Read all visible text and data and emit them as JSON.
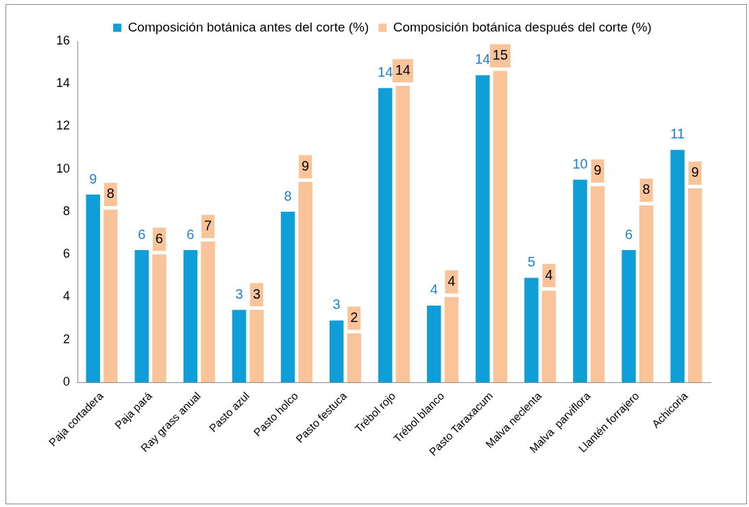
{
  "chart_data": {
    "type": "bar",
    "categories": [
      "Paja cortadera",
      "Paja pará",
      "Ray grass anual",
      "Pasto azul",
      "Pasto holco",
      "Pasto festuca",
      "Trébol rojo",
      "Trébol blanco",
      "Pasto Taraxacum",
      "Malva neclenta",
      "Malva  parviflora",
      "Llantén forrajero",
      "Achicoria"
    ],
    "series": [
      {
        "name": "Composición botánica antes del corte (%)",
        "color": "#0f9ed8",
        "values": [
          8.8,
          6.2,
          6.2,
          3.4,
          8.0,
          2.9,
          13.8,
          3.6,
          14.4,
          4.9,
          9.5,
          6.2,
          10.9
        ],
        "value_labels": [
          "9",
          "6",
          "6",
          "3",
          "8",
          "3",
          "14",
          "4",
          "14",
          "5",
          "10",
          "6",
          "11"
        ]
      },
      {
        "name": "Composición botánica después del corte (%)",
        "color": "#f9c49a",
        "values": [
          8.1,
          6.0,
          6.6,
          3.4,
          9.4,
          2.3,
          13.9,
          4.0,
          14.6,
          4.3,
          9.2,
          8.3,
          9.1
        ],
        "value_labels": [
          "8",
          "6",
          "7",
          "3",
          "9",
          "2",
          "14",
          "4",
          "15",
          "4",
          "9",
          "8",
          "9"
        ]
      }
    ],
    "ylim": [
      0,
      16
    ],
    "yticks": [
      0,
      2,
      4,
      6,
      8,
      10,
      12,
      14,
      16
    ],
    "grid": false,
    "legend": "top"
  }
}
